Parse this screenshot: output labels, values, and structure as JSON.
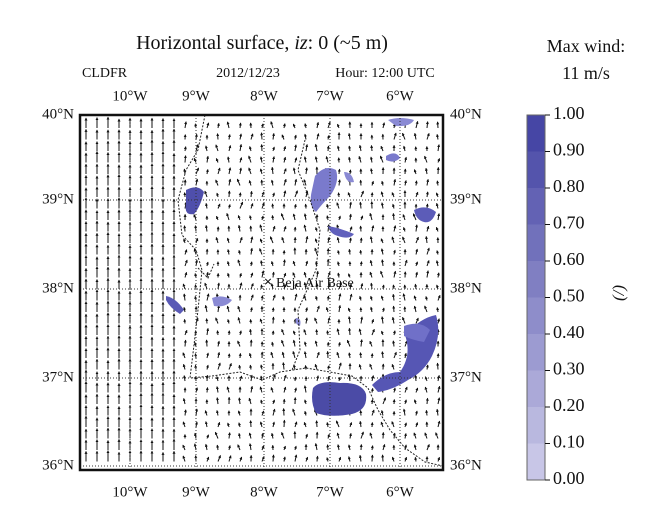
{
  "title": {
    "prefix": "Horizontal surface, ",
    "variable": "iz",
    "suffix": ": 0 (~5 m)"
  },
  "field": "CLDFR",
  "date": "2012/12/23",
  "hour": "Hour: 12:00 UTC",
  "max_wind": {
    "label": "Max wind:",
    "value": "11 m/s"
  },
  "longitudes": [
    "10°W",
    "9°W",
    "8°W",
    "7°W",
    "6°W"
  ],
  "latitudes": [
    "40°N",
    "39°N",
    "38°N",
    "37°N",
    "36°N"
  ],
  "location": "Beja Air Base",
  "colorbar": {
    "label": "(/)",
    "ticks": [
      {
        "value": 0,
        "label": "0.00"
      },
      {
        "value": 0.1,
        "label": "0.10"
      },
      {
        "value": 0.2,
        "label": "0.20"
      },
      {
        "value": 0.3,
        "label": "0.30"
      },
      {
        "value": 0.4,
        "label": "0.40"
      },
      {
        "value": 0.5,
        "label": "0.50"
      },
      {
        "value": 0.6,
        "label": "0.60"
      },
      {
        "value": 0.7,
        "label": "0.70"
      },
      {
        "value": 0.8,
        "label": "0.80"
      },
      {
        "value": 0.9,
        "label": "0.90"
      },
      {
        "value": 1,
        "label": "1.00"
      }
    ]
  }
}
